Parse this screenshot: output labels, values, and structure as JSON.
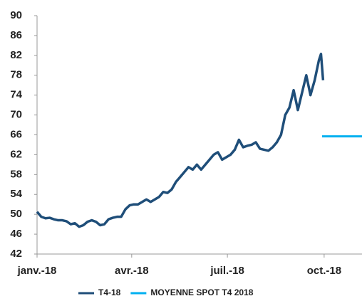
{
  "chart_data": {
    "type": "line",
    "x": [
      0,
      4,
      8,
      12,
      16,
      20,
      24,
      28,
      32,
      36,
      40,
      44,
      48,
      52,
      56,
      60,
      64,
      68,
      72,
      76,
      80,
      84,
      88,
      92,
      96,
      100,
      104,
      108,
      112,
      116,
      120,
      124,
      128,
      132,
      136,
      140,
      144,
      148,
      152,
      156,
      160,
      164,
      168,
      172,
      176,
      180,
      184,
      188,
      192,
      196,
      200,
      204,
      208,
      212,
      216,
      220,
      224,
      228,
      232,
      236,
      240,
      244,
      248,
      252,
      256,
      260,
      264,
      268,
      270,
      272
    ],
    "series": [
      {
        "name": "T4-18",
        "color": "#1f4e79",
        "values": [
          50.5,
          49.5,
          49.2,
          49.3,
          49.0,
          48.8,
          48.8,
          48.6,
          48.0,
          48.2,
          47.5,
          47.8,
          48.5,
          48.8,
          48.5,
          47.8,
          48.0,
          49.0,
          49.3,
          49.5,
          49.5,
          51.0,
          51.8,
          52.0,
          52.0,
          52.5,
          53.0,
          52.5,
          53.0,
          53.5,
          54.5,
          54.3,
          55.0,
          56.5,
          57.5,
          58.5,
          59.5,
          59.0,
          60.0,
          59.0,
          60.0,
          61.0,
          62.0,
          62.5,
          61.0,
          61.5,
          62.0,
          63.0,
          65.0,
          63.5,
          63.8,
          64.0,
          64.5,
          63.2,
          63.0,
          62.8,
          63.5,
          64.5,
          66.0,
          70.0,
          71.5,
          75.0,
          71.0,
          74.5,
          78.0,
          74.0,
          77.0,
          81.0,
          82.3,
          77.0
        ]
      },
      {
        "name": "MOYENNE SPOT T4 2018",
        "color": "#00b0f0",
        "x": [
          271,
          309
        ],
        "values": [
          65.7,
          65.7
        ]
      }
    ],
    "xlim": [
      0,
      309
    ],
    "xticks": [
      {
        "value": 0,
        "label": "janv.-18"
      },
      {
        "value": 90,
        "label": "avr.-18"
      },
      {
        "value": 181,
        "label": "juil.-18"
      },
      {
        "value": 273,
        "label": "oct.-18"
      }
    ],
    "ylim": [
      42,
      90
    ],
    "yticks": [
      42,
      46,
      50,
      54,
      58,
      62,
      66,
      70,
      74,
      78,
      82,
      86,
      90
    ]
  }
}
